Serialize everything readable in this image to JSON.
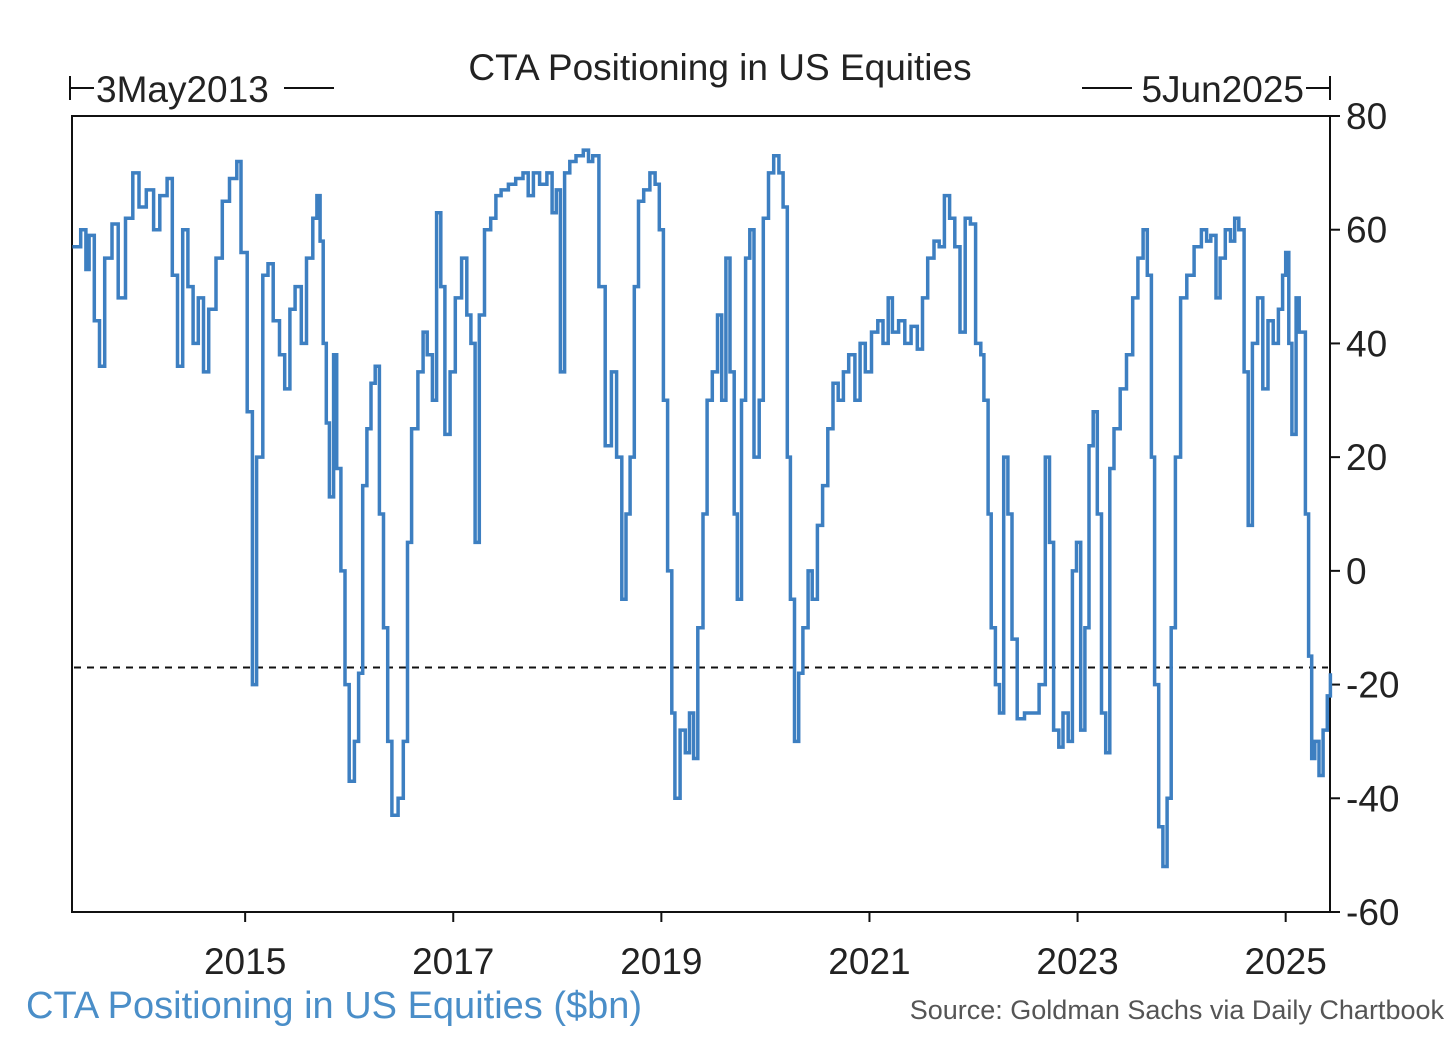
{
  "colors": {
    "series": "#3d7fc1",
    "axis": "#111111",
    "text": "#222222",
    "caption": "#4a8ec8",
    "source": "#555555"
  },
  "chart_data": {
    "type": "line",
    "title": "CTA Positioning in US Equities",
    "start_label": "3May2013",
    "end_label": "5Jun2025",
    "xlabel": "",
    "ylabel": "",
    "xlim": [
      2013.336,
      2025.426
    ],
    "ylim": [
      -60,
      80
    ],
    "y_ticks": [
      80,
      60,
      40,
      20,
      0,
      -20,
      -40,
      -60
    ],
    "x_ticks": [
      2015,
      2017,
      2019,
      2021,
      2023,
      2025
    ],
    "x_tick_labels": [
      "2015",
      "2017",
      "2019",
      "2021",
      "2023",
      "2025"
    ],
    "y_axis_side": "right",
    "grid": false,
    "reference_line": {
      "y": -17,
      "style": "dashed"
    },
    "series": [
      {
        "values": [
          [
            2013.34,
            57
          ],
          [
            2013.42,
            60
          ],
          [
            2013.47,
            53
          ],
          [
            2013.5,
            59
          ],
          [
            2013.55,
            44
          ],
          [
            2013.6,
            36
          ],
          [
            2013.65,
            55
          ],
          [
            2013.72,
            61
          ],
          [
            2013.78,
            48
          ],
          [
            2013.85,
            62
          ],
          [
            2013.92,
            70
          ],
          [
            2013.98,
            64
          ],
          [
            2014.05,
            67
          ],
          [
            2014.12,
            60
          ],
          [
            2014.18,
            66
          ],
          [
            2014.25,
            69
          ],
          [
            2014.3,
            52
          ],
          [
            2014.35,
            36
          ],
          [
            2014.4,
            60
          ],
          [
            2014.45,
            50
          ],
          [
            2014.5,
            40
          ],
          [
            2014.55,
            48
          ],
          [
            2014.6,
            35
          ],
          [
            2014.65,
            46
          ],
          [
            2014.72,
            55
          ],
          [
            2014.78,
            65
          ],
          [
            2014.85,
            69
          ],
          [
            2014.92,
            72
          ],
          [
            2014.96,
            56
          ],
          [
            2015.02,
            28
          ],
          [
            2015.07,
            -20
          ],
          [
            2015.11,
            20
          ],
          [
            2015.17,
            52
          ],
          [
            2015.22,
            54
          ],
          [
            2015.27,
            44
          ],
          [
            2015.33,
            38
          ],
          [
            2015.38,
            32
          ],
          [
            2015.43,
            46
          ],
          [
            2015.48,
            50
          ],
          [
            2015.54,
            40
          ],
          [
            2015.59,
            55
          ],
          [
            2015.65,
            62
          ],
          [
            2015.69,
            66
          ],
          [
            2015.72,
            58
          ],
          [
            2015.75,
            40
          ],
          [
            2015.78,
            26
          ],
          [
            2015.81,
            13
          ],
          [
            2015.85,
            38
          ],
          [
            2015.88,
            18
          ],
          [
            2015.92,
            0
          ],
          [
            2015.96,
            -20
          ],
          [
            2016.0,
            -37
          ],
          [
            2016.05,
            -30
          ],
          [
            2016.09,
            -18
          ],
          [
            2016.13,
            15
          ],
          [
            2016.17,
            25
          ],
          [
            2016.21,
            33
          ],
          [
            2016.25,
            36
          ],
          [
            2016.29,
            10
          ],
          [
            2016.33,
            -10
          ],
          [
            2016.37,
            -30
          ],
          [
            2016.41,
            -43
          ],
          [
            2016.47,
            -40
          ],
          [
            2016.52,
            -30
          ],
          [
            2016.56,
            5
          ],
          [
            2016.6,
            25
          ],
          [
            2016.66,
            35
          ],
          [
            2016.71,
            42
          ],
          [
            2016.75,
            38
          ],
          [
            2016.8,
            30
          ],
          [
            2016.84,
            63
          ],
          [
            2016.88,
            50
          ],
          [
            2016.92,
            24
          ],
          [
            2016.97,
            35
          ],
          [
            2017.02,
            48
          ],
          [
            2017.08,
            55
          ],
          [
            2017.13,
            45
          ],
          [
            2017.17,
            40
          ],
          [
            2017.21,
            5
          ],
          [
            2017.25,
            45
          ],
          [
            2017.3,
            60
          ],
          [
            2017.36,
            62
          ],
          [
            2017.41,
            66
          ],
          [
            2017.46,
            67
          ],
          [
            2017.53,
            68
          ],
          [
            2017.6,
            69
          ],
          [
            2017.67,
            70
          ],
          [
            2017.72,
            66
          ],
          [
            2017.77,
            70
          ],
          [
            2017.83,
            68
          ],
          [
            2017.9,
            70
          ],
          [
            2017.95,
            63
          ],
          [
            2017.99,
            67
          ],
          [
            2018.03,
            35
          ],
          [
            2018.07,
            70
          ],
          [
            2018.12,
            72
          ],
          [
            2018.18,
            73
          ],
          [
            2018.25,
            74
          ],
          [
            2018.3,
            72
          ],
          [
            2018.34,
            73
          ],
          [
            2018.4,
            50
          ],
          [
            2018.46,
            22
          ],
          [
            2018.52,
            35
          ],
          [
            2018.57,
            20
          ],
          [
            2018.62,
            -5
          ],
          [
            2018.66,
            10
          ],
          [
            2018.7,
            20
          ],
          [
            2018.74,
            50
          ],
          [
            2018.78,
            65
          ],
          [
            2018.83,
            67
          ],
          [
            2018.89,
            70
          ],
          [
            2018.94,
            68
          ],
          [
            2018.98,
            60
          ],
          [
            2019.02,
            30
          ],
          [
            2019.06,
            0
          ],
          [
            2019.1,
            -25
          ],
          [
            2019.13,
            -40
          ],
          [
            2019.18,
            -28
          ],
          [
            2019.23,
            -32
          ],
          [
            2019.27,
            -25
          ],
          [
            2019.31,
            -33
          ],
          [
            2019.35,
            -10
          ],
          [
            2019.4,
            10
          ],
          [
            2019.44,
            30
          ],
          [
            2019.49,
            35
          ],
          [
            2019.54,
            45
          ],
          [
            2019.58,
            30
          ],
          [
            2019.62,
            55
          ],
          [
            2019.66,
            35
          ],
          [
            2019.7,
            10
          ],
          [
            2019.73,
            -5
          ],
          [
            2019.77,
            30
          ],
          [
            2019.81,
            55
          ],
          [
            2019.85,
            60
          ],
          [
            2019.89,
            20
          ],
          [
            2019.94,
            30
          ],
          [
            2019.98,
            62
          ],
          [
            2020.03,
            70
          ],
          [
            2020.08,
            73
          ],
          [
            2020.13,
            70
          ],
          [
            2020.17,
            64
          ],
          [
            2020.21,
            20
          ],
          [
            2020.24,
            -5
          ],
          [
            2020.28,
            -30
          ],
          [
            2020.32,
            -18
          ],
          [
            2020.36,
            -10
          ],
          [
            2020.41,
            0
          ],
          [
            2020.45,
            -5
          ],
          [
            2020.5,
            8
          ],
          [
            2020.55,
            15
          ],
          [
            2020.6,
            25
          ],
          [
            2020.65,
            33
          ],
          [
            2020.7,
            30
          ],
          [
            2020.75,
            35
          ],
          [
            2020.8,
            38
          ],
          [
            2020.86,
            30
          ],
          [
            2020.91,
            40
          ],
          [
            2020.96,
            35
          ],
          [
            2021.02,
            42
          ],
          [
            2021.08,
            44
          ],
          [
            2021.13,
            40
          ],
          [
            2021.18,
            48
          ],
          [
            2021.22,
            42
          ],
          [
            2021.28,
            44
          ],
          [
            2021.34,
            40
          ],
          [
            2021.4,
            43
          ],
          [
            2021.46,
            39
          ],
          [
            2021.51,
            48
          ],
          [
            2021.56,
            55
          ],
          [
            2021.62,
            58
          ],
          [
            2021.67,
            57
          ],
          [
            2021.72,
            66
          ],
          [
            2021.77,
            62
          ],
          [
            2021.82,
            57
          ],
          [
            2021.87,
            42
          ],
          [
            2021.92,
            62
          ],
          [
            2021.97,
            61
          ],
          [
            2022.02,
            40
          ],
          [
            2022.07,
            38
          ],
          [
            2022.1,
            30
          ],
          [
            2022.14,
            10
          ],
          [
            2022.17,
            -10
          ],
          [
            2022.21,
            -20
          ],
          [
            2022.25,
            -25
          ],
          [
            2022.29,
            20
          ],
          [
            2022.33,
            10
          ],
          [
            2022.37,
            -12
          ],
          [
            2022.42,
            -26
          ],
          [
            2022.49,
            -25
          ],
          [
            2022.56,
            -25
          ],
          [
            2022.63,
            -20
          ],
          [
            2022.69,
            20
          ],
          [
            2022.73,
            5
          ],
          [
            2022.77,
            -28
          ],
          [
            2022.82,
            -31
          ],
          [
            2022.86,
            -25
          ],
          [
            2022.91,
            -30
          ],
          [
            2022.95,
            0
          ],
          [
            2022.99,
            5
          ],
          [
            2023.03,
            -28
          ],
          [
            2023.07,
            -10
          ],
          [
            2023.11,
            22
          ],
          [
            2023.15,
            28
          ],
          [
            2023.19,
            10
          ],
          [
            2023.23,
            -25
          ],
          [
            2023.27,
            -32
          ],
          [
            2023.31,
            18
          ],
          [
            2023.35,
            25
          ],
          [
            2023.41,
            32
          ],
          [
            2023.47,
            38
          ],
          [
            2023.53,
            48
          ],
          [
            2023.58,
            55
          ],
          [
            2023.63,
            60
          ],
          [
            2023.67,
            52
          ],
          [
            2023.71,
            20
          ],
          [
            2023.74,
            -20
          ],
          [
            2023.78,
            -45
          ],
          [
            2023.82,
            -52
          ],
          [
            2023.86,
            -40
          ],
          [
            2023.9,
            -10
          ],
          [
            2023.94,
            20
          ],
          [
            2023.99,
            48
          ],
          [
            2024.05,
            52
          ],
          [
            2024.12,
            57
          ],
          [
            2024.19,
            60
          ],
          [
            2024.24,
            58
          ],
          [
            2024.28,
            59
          ],
          [
            2024.33,
            48
          ],
          [
            2024.37,
            55
          ],
          [
            2024.42,
            60
          ],
          [
            2024.47,
            58
          ],
          [
            2024.51,
            62
          ],
          [
            2024.55,
            60
          ],
          [
            2024.6,
            35
          ],
          [
            2024.64,
            8
          ],
          [
            2024.68,
            40
          ],
          [
            2024.73,
            48
          ],
          [
            2024.78,
            32
          ],
          [
            2024.83,
            44
          ],
          [
            2024.88,
            40
          ],
          [
            2024.93,
            46
          ],
          [
            2024.97,
            52
          ],
          [
            2025.0,
            56
          ],
          [
            2025.03,
            40
          ],
          [
            2025.06,
            24
          ],
          [
            2025.1,
            48
          ],
          [
            2025.13,
            42
          ],
          [
            2025.17,
            42
          ],
          [
            2025.19,
            10
          ],
          [
            2025.22,
            -15
          ],
          [
            2025.25,
            -33
          ],
          [
            2025.28,
            -30
          ],
          [
            2025.32,
            -36
          ],
          [
            2025.36,
            -28
          ],
          [
            2025.4,
            -22
          ],
          [
            2025.43,
            -18
          ]
        ]
      }
    ]
  },
  "caption": "CTA Positioning in US Equities ($bn)",
  "source": "Source: Goldman Sachs via Daily Chartbook"
}
